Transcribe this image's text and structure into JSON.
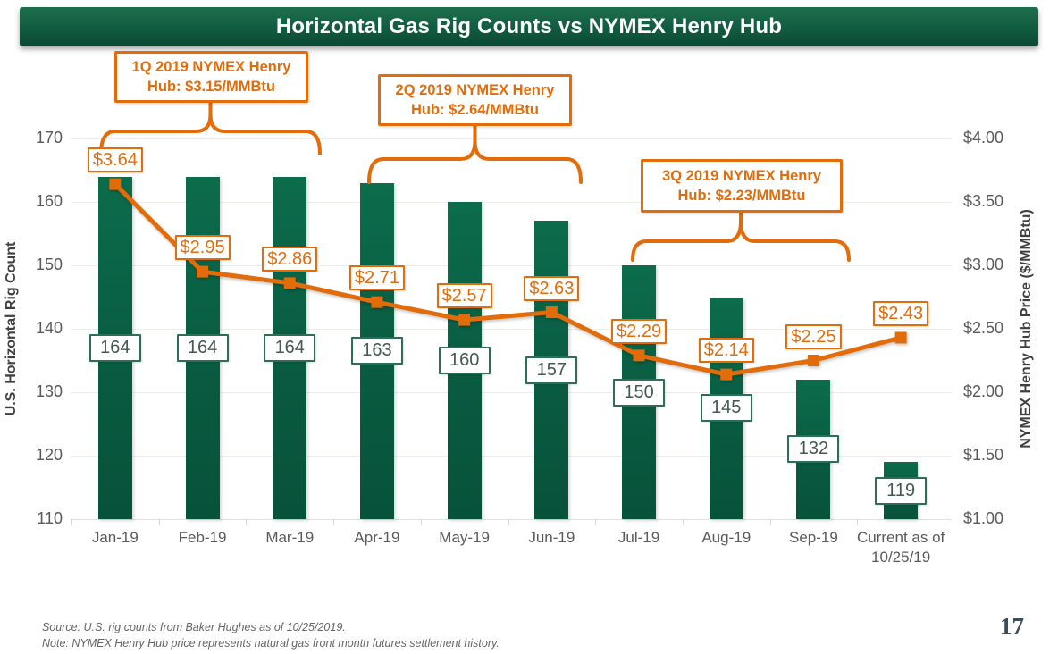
{
  "slide": {
    "title": "Horizontal Gas Rig Counts vs NYMEX Henry Hub",
    "page_number": "17",
    "footer": {
      "source": "Source: U.S. rig counts from Baker Hughes as of 10/25/2019.",
      "note": "Note:  NYMEX Henry Hub price represents natural gas front month futures settlement history."
    }
  },
  "colors": {
    "bar_green": "#0a6448",
    "accent_orange": "#e36c0a",
    "title_bar_green": "#115c40",
    "axis_text_gray": "#595959"
  },
  "chart_data": {
    "type": "bar",
    "subtype": "bar+line dual-axis combo",
    "categories": [
      "Jan-19",
      "Feb-19",
      "Mar-19",
      "Apr-19",
      "May-19",
      "Jun-19",
      "Jul-19",
      "Aug-19",
      "Sep-19",
      "Current as of 10/25/19"
    ],
    "series": [
      {
        "name": "U.S. Horizontal Rig Count",
        "type": "bar",
        "axis": "left",
        "color": "#0a6448",
        "values": [
          164,
          164,
          164,
          163,
          160,
          157,
          150,
          145,
          132,
          119
        ]
      },
      {
        "name": "NYMEX Henry Hub Price",
        "type": "line",
        "axis": "right",
        "color": "#e36c0a",
        "values": [
          3.64,
          2.95,
          2.86,
          2.71,
          2.57,
          2.63,
          2.29,
          2.14,
          2.25,
          2.43
        ],
        "point_labels": [
          "$3.64",
          "$2.95",
          "$2.86",
          "$2.71",
          "$2.57",
          "$2.63",
          "$2.29",
          "$2.14",
          "$2.25",
          "$2.43"
        ]
      }
    ],
    "left_axis": {
      "title": "U.S. Horizontal Rig Count",
      "min": 110,
      "max": 170,
      "step": 10,
      "tick_labels": [
        "170",
        "160",
        "150",
        "140",
        "130",
        "120",
        "110"
      ]
    },
    "right_axis": {
      "title": "NYMEX Henry Hub Price ($/MMBtu)",
      "min": 1.0,
      "max": 4.0,
      "step": 0.5,
      "tick_labels": [
        "$4.00",
        "$3.50",
        "$3.00",
        "$2.50",
        "$2.00",
        "$1.50",
        "$1.00"
      ]
    },
    "grid": "horizontal gridlines on",
    "legend": "none",
    "annotations": [
      {
        "label": "1Q 2019 NYMEX Henry Hub: $3.15/MMBtu",
        "spans_categories": [
          "Jan-19",
          "Mar-19"
        ]
      },
      {
        "label": "2Q 2019 NYMEX Henry Hub: $2.64/MMBtu",
        "spans_categories": [
          "Apr-19",
          "Jun-19"
        ]
      },
      {
        "label": "3Q 2019 NYMEX Henry Hub: $2.23/MMBtu",
        "spans_categories": [
          "Jul-19",
          "Sep-19"
        ]
      }
    ]
  }
}
